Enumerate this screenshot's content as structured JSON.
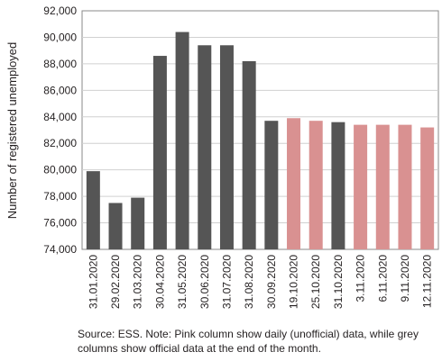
{
  "chart_data": {
    "type": "bar",
    "title": "",
    "xlabel": "",
    "ylabel": "Number of registered unemployed",
    "ylim": [
      74000,
      92000
    ],
    "ytick_step": 2000,
    "grid": true,
    "colors": {
      "official": "#555555",
      "daily": "#d99191",
      "grid": "#d0d0d0",
      "axis": "#888888"
    },
    "categories": [
      "31.01.2020",
      "29.02.2020",
      "31.03.2020",
      "30.04.2020",
      "31.05.2020",
      "30.06.2020",
      "31.07.2020",
      "31.08.2020",
      "30.09.2020",
      "19.10.2020",
      "25.10.2020",
      "31.10.2020",
      "3.11.2020",
      "6.11.2020",
      "9.11.2020",
      "12.11.2020"
    ],
    "values": [
      79900,
      77500,
      77900,
      88600,
      90400,
      89400,
      89400,
      88200,
      83700,
      83900,
      83700,
      83600,
      83400,
      83400,
      83400,
      83200
    ],
    "kinds": [
      "official",
      "official",
      "official",
      "official",
      "official",
      "official",
      "official",
      "official",
      "official",
      "daily",
      "daily",
      "official",
      "daily",
      "daily",
      "daily",
      "daily"
    ]
  },
  "source_note": "Source: ESS. Note: Pink column show daily (unofficial) data, while grey columns show official data at the end of the month."
}
